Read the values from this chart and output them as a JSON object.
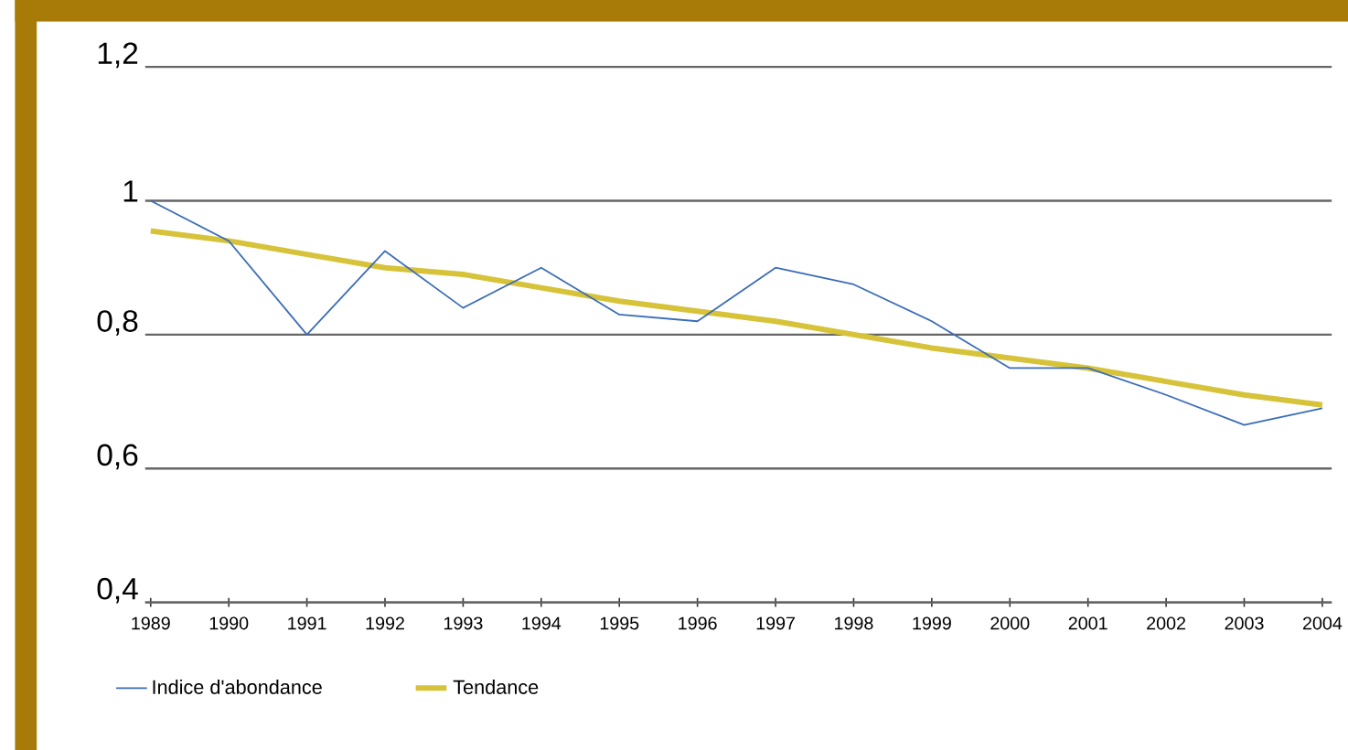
{
  "chart_data": {
    "type": "line",
    "categories": [
      "1989",
      "1990",
      "1991",
      "1992",
      "1993",
      "1994",
      "1995",
      "1996",
      "1997",
      "1998",
      "1999",
      "2000",
      "2001",
      "2002",
      "2003",
      "2004"
    ],
    "series": [
      {
        "name": "Indice d'abondance",
        "color": "#3a6cb8",
        "values": [
          1.0,
          0.94,
          0.8,
          0.925,
          0.84,
          0.9,
          0.83,
          0.82,
          0.9,
          0.875,
          0.82,
          0.75,
          0.75,
          0.71,
          0.665,
          0.69
        ]
      },
      {
        "name": "Tendance",
        "color": "#d6c33a",
        "values": [
          0.955,
          0.94,
          0.92,
          0.9,
          0.89,
          0.87,
          0.85,
          0.835,
          0.82,
          0.8,
          0.78,
          0.765,
          0.75,
          0.73,
          0.71,
          0.695
        ]
      }
    ],
    "ylim": [
      0.4,
      1.2
    ],
    "yticks": [
      {
        "value": 0.4,
        "label": "0,4"
      },
      {
        "value": 0.6,
        "label": "0,6"
      },
      {
        "value": 0.8,
        "label": "0,8"
      },
      {
        "value": 1,
        "label": "1"
      },
      {
        "value": 1.2,
        "label": "1,2"
      }
    ],
    "grid": "y",
    "legend": "bottom",
    "marker": "none",
    "line_style": "solid"
  }
}
